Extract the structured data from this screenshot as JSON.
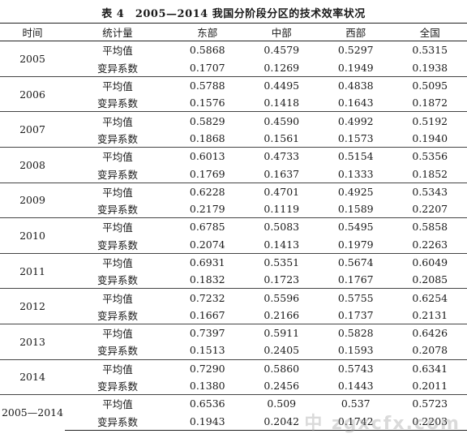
{
  "title": "表 4　2005—2014 我国分阶段分区的技术效率状况",
  "headers": [
    "时间",
    "统计量",
    "东部",
    "中部",
    "西部",
    "全国"
  ],
  "rows": [
    {
      "year": "2005",
      "mean": [
        "0.5868",
        "0.4579",
        "0.5297",
        "0.5315"
      ],
      "cv": [
        "0.1707",
        "0.1269",
        "0.1949",
        "0.1938"
      ]
    },
    {
      "year": "2006",
      "mean": [
        "0.5788",
        "0.4495",
        "0.4838",
        "0.5095"
      ],
      "cv": [
        "0.1576",
        "0.1418",
        "0.1643",
        "0.1872"
      ]
    },
    {
      "year": "2007",
      "mean": [
        "0.5829",
        "0.4590",
        "0.4992",
        "0.5192"
      ],
      "cv": [
        "0.1868",
        "0.1561",
        "0.1573",
        "0.1940"
      ]
    },
    {
      "year": "2008",
      "mean": [
        "0.6013",
        "0.4733",
        "0.5154",
        "0.5356"
      ],
      "cv": [
        "0.1769",
        "0.1637",
        "0.1333",
        "0.1852"
      ]
    },
    {
      "year": "2009",
      "mean": [
        "0.6228",
        "0.4701",
        "0.4925",
        "0.5343"
      ],
      "cv": [
        "0.2179",
        "0.1119",
        "0.1589",
        "0.2207"
      ]
    },
    {
      "year": "2010",
      "mean": [
        "0.6785",
        "0.5083",
        "0.5495",
        "0.5858"
      ],
      "cv": [
        "0.2074",
        "0.1413",
        "0.1979",
        "0.2263"
      ]
    },
    {
      "year": "2011",
      "mean": [
        "0.6931",
        "0.5351",
        "0.5674",
        "0.6049"
      ],
      "cv": [
        "0.1832",
        "0.1723",
        "0.1767",
        "0.2085"
      ]
    },
    {
      "year": "2012",
      "mean": [
        "0.7232",
        "0.5596",
        "0.5755",
        "0.6254"
      ],
      "cv": [
        "0.1667",
        "0.2166",
        "0.1737",
        "0.2131"
      ]
    },
    {
      "year": "2013",
      "mean": [
        "0.7397",
        "0.5911",
        "0.5828",
        "0.6426"
      ],
      "cv": [
        "0.1513",
        "0.2405",
        "0.1593",
        "0.2078"
      ]
    },
    {
      "year": "2014",
      "mean": [
        "0.7290",
        "0.5860",
        "0.5743",
        "0.6341"
      ],
      "cv": [
        "0.1380",
        "0.2456",
        "0.1443",
        "0.2011"
      ]
    },
    {
      "year": "2005—2014",
      "mean": [
        "0.6536",
        "0.509",
        "0.537",
        "0.5723"
      ],
      "cv": [
        "0.1943",
        "0.2042",
        "0.1742",
        "0.2203"
      ]
    }
  ],
  "labels": {
    "mean": "平均值",
    "cv": "变异系数"
  },
  "watermark": "中 zgxcfx.com"
}
